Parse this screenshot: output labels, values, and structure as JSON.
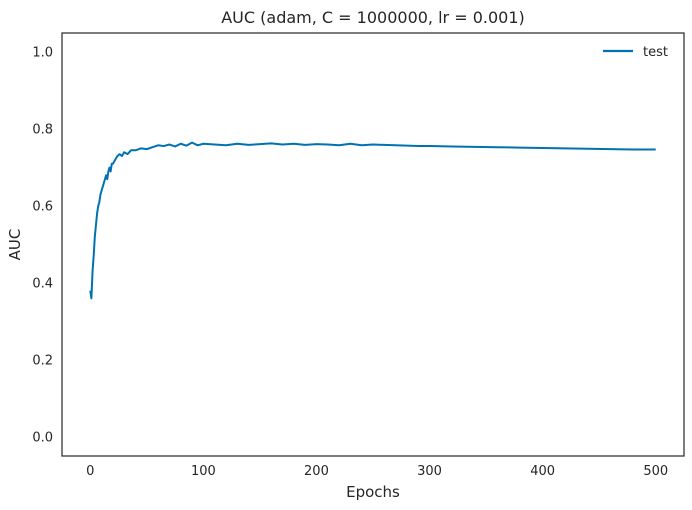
{
  "chart_data": {
    "type": "line",
    "title": "AUC (adam, C = 1000000, lr = 0.001)",
    "xlabel": "Epochs",
    "ylabel": "AUC",
    "xlim": [
      -25,
      525
    ],
    "ylim": [
      -0.05,
      1.05
    ],
    "xticks": [
      0,
      100,
      200,
      300,
      400,
      500
    ],
    "yticks": [
      0.0,
      0.2,
      0.4,
      0.6,
      0.8,
      1.0
    ],
    "xtick_labels": [
      "0",
      "100",
      "200",
      "300",
      "400",
      "500"
    ],
    "ytick_labels": [
      "0.0",
      "0.2",
      "0.4",
      "0.6",
      "0.8",
      "1.0"
    ],
    "grid": false,
    "legend": "top-right",
    "series": [
      {
        "name": "test",
        "color": "#0072b2",
        "x": [
          0,
          1,
          2,
          3,
          4,
          5,
          6,
          7,
          8,
          9,
          10,
          11,
          12,
          13,
          14,
          15,
          16,
          17,
          18,
          19,
          20,
          22,
          24,
          26,
          28,
          30,
          33,
          36,
          40,
          45,
          50,
          55,
          60,
          65,
          70,
          75,
          80,
          85,
          90,
          95,
          100,
          110,
          120,
          130,
          140,
          150,
          160,
          170,
          180,
          190,
          200,
          210,
          220,
          230,
          240,
          250,
          260,
          270,
          280,
          290,
          300,
          320,
          340,
          360,
          380,
          400,
          420,
          440,
          460,
          480,
          500
        ],
        "y": [
          0.38,
          0.36,
          0.43,
          0.47,
          0.52,
          0.55,
          0.58,
          0.6,
          0.61,
          0.63,
          0.64,
          0.65,
          0.66,
          0.67,
          0.68,
          0.67,
          0.69,
          0.7,
          0.69,
          0.71,
          0.71,
          0.72,
          0.73,
          0.735,
          0.73,
          0.74,
          0.735,
          0.745,
          0.745,
          0.75,
          0.748,
          0.753,
          0.758,
          0.756,
          0.76,
          0.755,
          0.762,
          0.757,
          0.765,
          0.758,
          0.762,
          0.76,
          0.758,
          0.762,
          0.759,
          0.761,
          0.763,
          0.76,
          0.762,
          0.759,
          0.761,
          0.76,
          0.758,
          0.762,
          0.758,
          0.76,
          0.759,
          0.758,
          0.757,
          0.756,
          0.756,
          0.755,
          0.754,
          0.753,
          0.752,
          0.751,
          0.75,
          0.749,
          0.748,
          0.747,
          0.747
        ]
      }
    ]
  }
}
